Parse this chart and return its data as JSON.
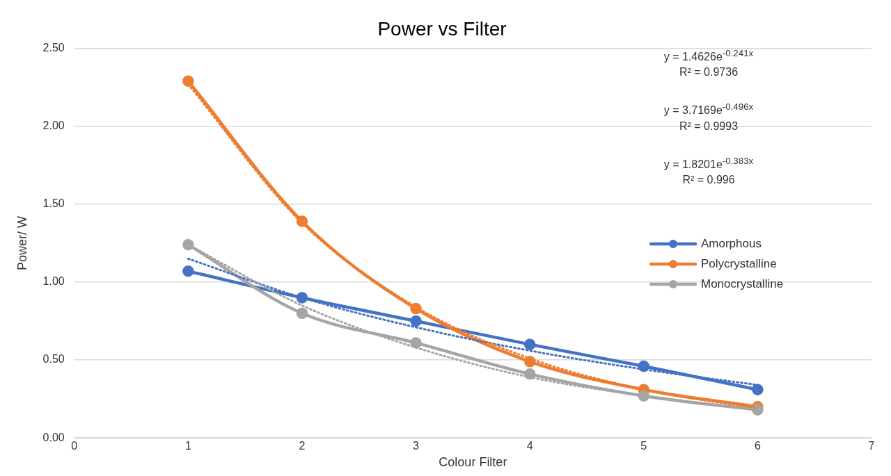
{
  "chart_data": {
    "type": "line",
    "title": "Power vs Filter",
    "xlabel": "Colour Filter",
    "ylabel": "Power/ W",
    "x": [
      1,
      2,
      3,
      4,
      5,
      6
    ],
    "series": [
      {
        "name": "Amorphous",
        "color": "#4472c4",
        "values": [
          1.07,
          0.9,
          0.75,
          0.6,
          0.46,
          0.31
        ]
      },
      {
        "name": "Polycrystalline",
        "color": "#ed7d31",
        "values": [
          2.29,
          1.39,
          0.83,
          0.49,
          0.31,
          0.2
        ]
      },
      {
        "name": "Monocrystalline",
        "color": "#a5a5a5",
        "values": [
          1.24,
          0.8,
          0.61,
          0.41,
          0.27,
          0.18
        ]
      },
      {
        "type": "line",
        "color": "#4472c4",
        "line_style": "dotted",
        "marker": "none",
        "values": [
          1.15,
          0.9,
          0.71,
          0.56,
          0.44,
          0.34
        ]
      },
      {
        "type": "line",
        "color": "#ed7d31",
        "line_style": "dotted",
        "marker": "none",
        "values": [
          2.27,
          1.38,
          0.84,
          0.51,
          0.31,
          0.19
        ]
      },
      {
        "type": "line",
        "color": "#a5a5a5",
        "line_style": "dotted",
        "marker": "none",
        "values": [
          1.24,
          0.85,
          0.58,
          0.39,
          0.27,
          0.18
        ]
      }
    ],
    "xlim": [
      0,
      7
    ],
    "xticks": [
      0,
      1,
      2,
      3,
      4,
      5,
      6,
      7
    ],
    "ylim": [
      0,
      2.5
    ],
    "yticks": [
      {
        "value": 0,
        "label": "0.00"
      },
      {
        "value": 0.5,
        "label": "0.50"
      },
      {
        "value": 1,
        "label": "1.00"
      },
      {
        "value": 1.5,
        "label": "1.50"
      },
      {
        "value": 2,
        "label": "2.00"
      },
      {
        "value": 2.5,
        "label": "2.50"
      }
    ],
    "annotations": [
      "y = 1.4626e$^{-0.241x}$",
      "R² = 0.9736",
      "y = 3.7169e$^{-0.496x}$",
      "R² = 0.9993",
      "y = 1.8201e$^{-0.383x}$",
      "R² = 0.996"
    ],
    "grid": "y",
    "legend": "right",
    "marker": "circle",
    "line_style": "solid"
  }
}
